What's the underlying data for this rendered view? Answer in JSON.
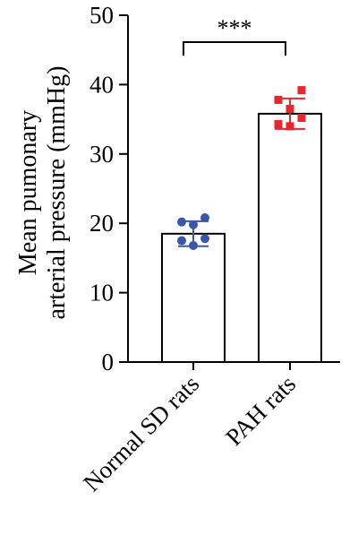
{
  "chart_data": {
    "type": "bar",
    "ylabel_lines": [
      "Mean pumonary",
      "arterial pressure (mmHg)"
    ],
    "categories": [
      "Normal SD rats",
      "PAH rats"
    ],
    "ylim": [
      0,
      50
    ],
    "yticks": [
      0,
      10,
      20,
      30,
      40,
      50
    ],
    "series": [
      {
        "values": [
          18.5,
          35.8
        ],
        "error": [
          1.8,
          2.2
        ],
        "points": [
          [
            20.8,
            20.2,
            19.8,
            17.8,
            17.5,
            16.8
          ],
          [
            39.2,
            37.8,
            36.5,
            35.2,
            34.3,
            34.0
          ]
        ],
        "point_colors": [
          "#3a56a6",
          "#e8262d"
        ]
      }
    ],
    "significance": {
      "between": [
        0,
        1
      ],
      "label": "***"
    },
    "grid": false
  }
}
